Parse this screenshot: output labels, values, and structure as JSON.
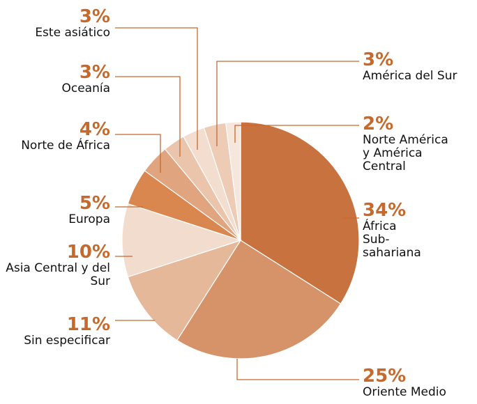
{
  "chart_data": {
    "type": "pie",
    "categories": [
      "África Sub-sahariana",
      "Oriente Medio",
      "Sin especificar",
      "Asia Central y del Sur",
      "Europa",
      "Norte de África",
      "Oceanía",
      "Este asiático",
      "América del Sur",
      "Norte América y América Central"
    ],
    "values": [
      34,
      25,
      11,
      10,
      5,
      4,
      3,
      3,
      3,
      2
    ],
    "value_labels": [
      "34%",
      "25%",
      "11%",
      "10%",
      "5%",
      "4%",
      "3%",
      "3%",
      "3%",
      "2%"
    ],
    "colors": [
      "#c8733f",
      "#d6936a",
      "#e6b89a",
      "#f2dccd",
      "#d9874f",
      "#e0a47e",
      "#ebc5ab",
      "#f3ddcf",
      "#eecbb5",
      "#f6e7dc"
    ]
  }
}
